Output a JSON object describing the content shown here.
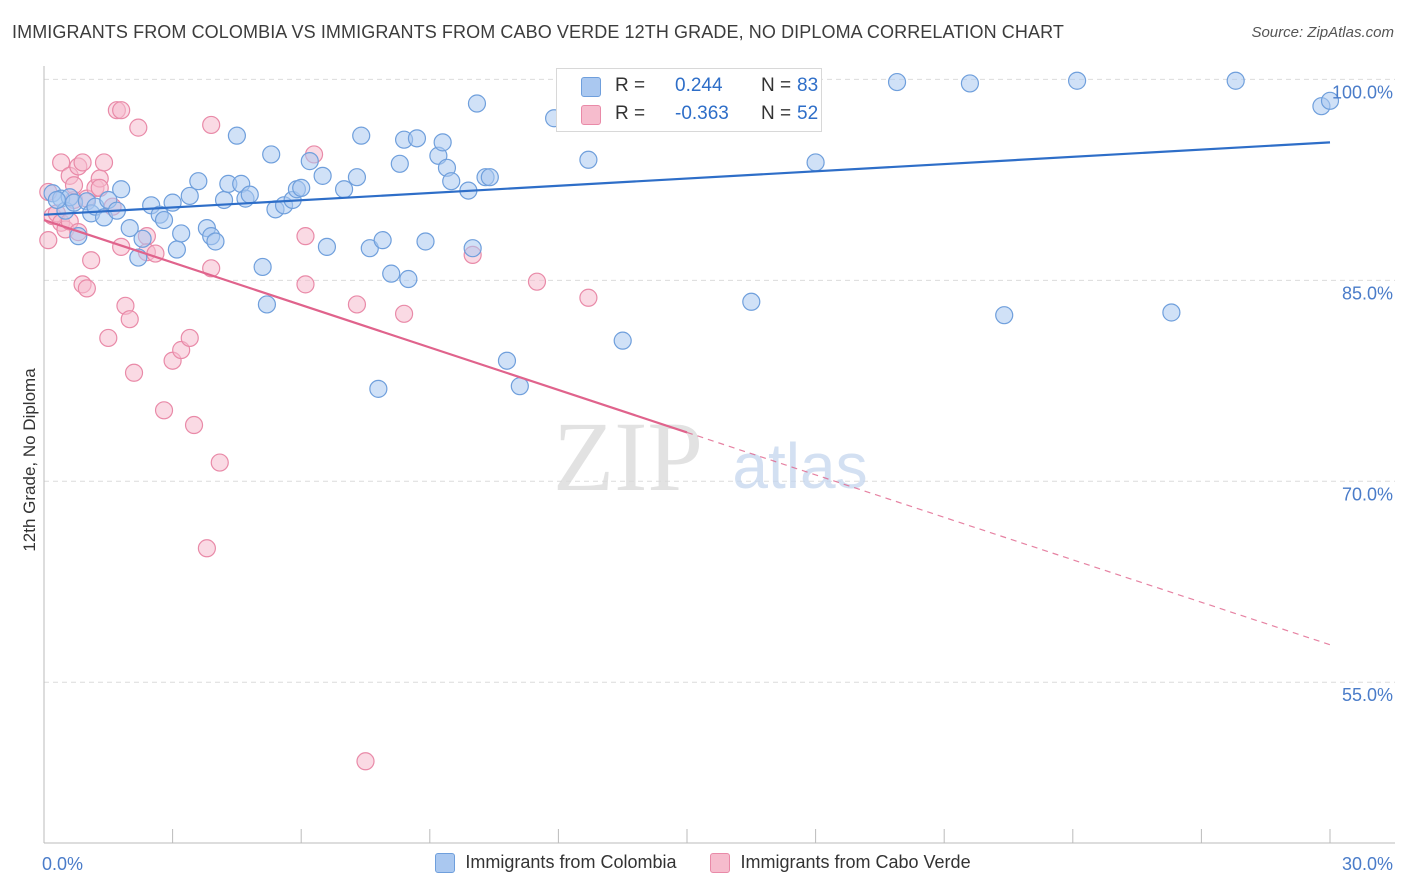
{
  "header": {
    "title": "IMMIGRANTS FROM COLOMBIA VS IMMIGRANTS FROM CABO VERDE 12TH GRADE, NO DIPLOMA CORRELATION CHART",
    "source": "Source: ZipAtlas.com"
  },
  "watermark": {
    "zip": "ZIP",
    "atlas": "atlas"
  },
  "legend": {
    "r_label": "R =",
    "n_label": "N =",
    "rows": [
      {
        "name": "Immigrants from Colombia",
        "r": "0.244",
        "n": "83"
      },
      {
        "name": "Immigrants from Cabo Verde",
        "r": "-0.363",
        "n": "52"
      }
    ]
  },
  "colors": {
    "colombia_fill": "#aac8f0",
    "colombia_stroke": "#6f9fdc",
    "colombia_line": "#2e6ec8",
    "caboverde_fill": "#f6bccd",
    "caboverde_stroke": "#e98aa8",
    "caboverde_line": "#e0638c",
    "tick_label": "#4a7cc9",
    "grid": "#dcdcdc"
  },
  "chart_data": {
    "type": "scatter",
    "title": "IMMIGRANTS FROM COLOMBIA VS IMMIGRANTS FROM CABO VERDE 12TH GRADE, NO DIPLOMA CORRELATION CHART",
    "xlabel": "",
    "ylabel": "12th Grade, No Diploma",
    "xlim": [
      0,
      30
    ],
    "ylim": [
      43,
      101
    ],
    "x_tick_labels": [
      "0.0%",
      "30.0%"
    ],
    "y_ticks": [
      55,
      70,
      85,
      100
    ],
    "y_tick_labels": [
      "55.0%",
      "70.0%",
      "85.0%",
      "100.0%"
    ],
    "grid": "horizontal dashed",
    "legend_position": "top-center",
    "series": [
      {
        "name": "Immigrants from Colombia",
        "trend": {
          "x": [
            0,
            30
          ],
          "y": [
            89.9,
            95.3
          ],
          "dashed_from": null
        },
        "points": [
          [
            0.2,
            91.5
          ],
          [
            0.4,
            91.1
          ],
          [
            0.5,
            90.2
          ],
          [
            0.6,
            91.2
          ],
          [
            0.7,
            90.8
          ],
          [
            0.8,
            88.3
          ],
          [
            1.0,
            90.9
          ],
          [
            1.1,
            90.0
          ],
          [
            1.2,
            90.5
          ],
          [
            1.4,
            89.7
          ],
          [
            1.5,
            91.0
          ],
          [
            1.7,
            90.2
          ],
          [
            1.8,
            91.8
          ],
          [
            2.0,
            88.9
          ],
          [
            2.2,
            86.7
          ],
          [
            2.3,
            88.1
          ],
          [
            2.5,
            90.6
          ],
          [
            2.7,
            89.9
          ],
          [
            2.8,
            89.5
          ],
          [
            3.0,
            90.8
          ],
          [
            3.1,
            87.3
          ],
          [
            3.2,
            88.5
          ],
          [
            3.4,
            91.3
          ],
          [
            3.6,
            92.4
          ],
          [
            3.8,
            88.9
          ],
          [
            3.9,
            88.3
          ],
          [
            4.0,
            87.9
          ],
          [
            4.2,
            91.0
          ],
          [
            4.3,
            92.2
          ],
          [
            4.5,
            95.8
          ],
          [
            4.6,
            92.2
          ],
          [
            4.7,
            91.1
          ],
          [
            4.8,
            91.4
          ],
          [
            5.1,
            86.0
          ],
          [
            5.2,
            83.2
          ],
          [
            5.3,
            94.4
          ],
          [
            5.4,
            90.3
          ],
          [
            5.6,
            90.6
          ],
          [
            5.8,
            91.0
          ],
          [
            5.9,
            91.8
          ],
          [
            6.0,
            91.9
          ],
          [
            6.2,
            93.9
          ],
          [
            6.5,
            92.8
          ],
          [
            6.6,
            87.5
          ],
          [
            7.0,
            91.8
          ],
          [
            7.3,
            92.7
          ],
          [
            7.4,
            95.8
          ],
          [
            7.6,
            87.4
          ],
          [
            7.8,
            76.9
          ],
          [
            7.9,
            88.0
          ],
          [
            8.1,
            85.5
          ],
          [
            8.3,
            93.7
          ],
          [
            8.4,
            95.5
          ],
          [
            8.5,
            85.1
          ],
          [
            8.7,
            95.6
          ],
          [
            8.9,
            87.9
          ],
          [
            9.2,
            94.3
          ],
          [
            9.3,
            95.3
          ],
          [
            9.4,
            93.4
          ],
          [
            9.5,
            92.4
          ],
          [
            9.9,
            91.7
          ],
          [
            10.0,
            87.4
          ],
          [
            10.1,
            98.2
          ],
          [
            10.3,
            92.7
          ],
          [
            10.4,
            92.7
          ],
          [
            10.8,
            79.0
          ],
          [
            11.1,
            77.1
          ],
          [
            11.9,
            97.1
          ],
          [
            12.7,
            94.0
          ],
          [
            13.5,
            80.5
          ],
          [
            14.3,
            98.4
          ],
          [
            14.8,
            99.8
          ],
          [
            16.5,
            83.4
          ],
          [
            18.0,
            93.8
          ],
          [
            19.9,
            99.8
          ],
          [
            21.6,
            99.7
          ],
          [
            22.4,
            82.4
          ],
          [
            24.1,
            99.9
          ],
          [
            26.3,
            82.6
          ],
          [
            27.8,
            99.9
          ],
          [
            29.8,
            98.0
          ],
          [
            30.0,
            98.4
          ],
          [
            0.3,
            91.0
          ]
        ]
      },
      {
        "name": "Immigrants from Cabo Verde",
        "trend": {
          "x": [
            0,
            30
          ],
          "y": [
            89.5,
            57.8
          ],
          "dashed_from": 15.0
        },
        "points": [
          [
            0.1,
            91.6
          ],
          [
            0.1,
            88.0
          ],
          [
            0.2,
            89.8
          ],
          [
            0.3,
            90.0
          ],
          [
            0.4,
            89.3
          ],
          [
            0.4,
            93.8
          ],
          [
            0.5,
            88.8
          ],
          [
            0.6,
            92.8
          ],
          [
            0.6,
            89.4
          ],
          [
            0.7,
            91.0
          ],
          [
            0.7,
            92.1
          ],
          [
            0.8,
            93.5
          ],
          [
            0.8,
            88.6
          ],
          [
            0.9,
            93.8
          ],
          [
            0.9,
            84.7
          ],
          [
            1.0,
            84.4
          ],
          [
            1.0,
            91.1
          ],
          [
            1.1,
            86.5
          ],
          [
            1.2,
            91.9
          ],
          [
            1.3,
            92.6
          ],
          [
            1.3,
            91.9
          ],
          [
            1.4,
            93.8
          ],
          [
            1.5,
            80.7
          ],
          [
            1.6,
            90.5
          ],
          [
            1.7,
            97.7
          ],
          [
            1.8,
            87.5
          ],
          [
            1.8,
            97.7
          ],
          [
            1.9,
            83.1
          ],
          [
            2.0,
            82.1
          ],
          [
            2.1,
            78.1
          ],
          [
            2.2,
            96.4
          ],
          [
            2.4,
            88.3
          ],
          [
            2.4,
            87.1
          ],
          [
            2.6,
            87.0
          ],
          [
            2.8,
            75.3
          ],
          [
            3.0,
            79.0
          ],
          [
            3.2,
            79.8
          ],
          [
            3.4,
            80.7
          ],
          [
            3.5,
            74.2
          ],
          [
            3.8,
            65.0
          ],
          [
            3.9,
            85.9
          ],
          [
            3.9,
            96.6
          ],
          [
            4.1,
            71.4
          ],
          [
            6.1,
            88.3
          ],
          [
            6.1,
            84.7
          ],
          [
            6.3,
            94.4
          ],
          [
            7.3,
            83.2
          ],
          [
            7.5,
            49.1
          ],
          [
            8.4,
            82.5
          ],
          [
            10.0,
            86.9
          ],
          [
            11.5,
            84.9
          ],
          [
            12.7,
            83.7
          ]
        ]
      }
    ]
  }
}
